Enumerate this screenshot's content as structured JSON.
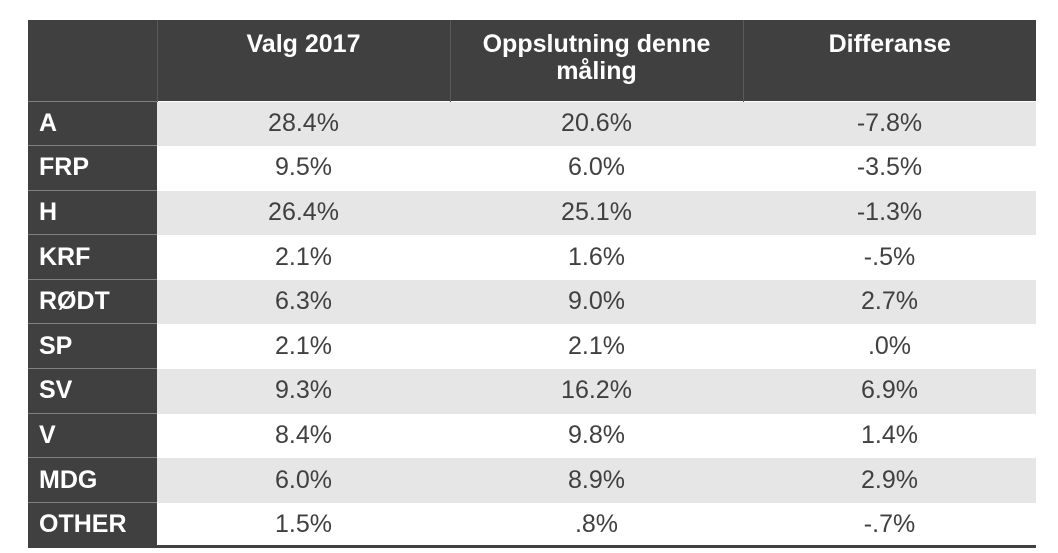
{
  "chart_data": {
    "type": "table",
    "columns": [
      "",
      "Valg 2017",
      "Oppslutning denne måling",
      "Differanse"
    ],
    "rows": [
      {
        "party": "A",
        "valg_2017": "28.4%",
        "oppslutning": "20.6%",
        "differanse": "-7.8%"
      },
      {
        "party": "FRP",
        "valg_2017": "9.5%",
        "oppslutning": "6.0%",
        "differanse": "-3.5%"
      },
      {
        "party": "H",
        "valg_2017": "26.4%",
        "oppslutning": "25.1%",
        "differanse": "-1.3%"
      },
      {
        "party": "KRF",
        "valg_2017": "2.1%",
        "oppslutning": "1.6%",
        "differanse": "-.5%"
      },
      {
        "party": "RØDT",
        "valg_2017": "6.3%",
        "oppslutning": "9.0%",
        "differanse": "2.7%"
      },
      {
        "party": "SP",
        "valg_2017": "2.1%",
        "oppslutning": "2.1%",
        "differanse": ".0%"
      },
      {
        "party": "SV",
        "valg_2017": "9.3%",
        "oppslutning": "16.2%",
        "differanse": "6.9%"
      },
      {
        "party": "V",
        "valg_2017": "8.4%",
        "oppslutning": "9.8%",
        "differanse": "1.4%"
      },
      {
        "party": "MDG",
        "valg_2017": "6.0%",
        "oppslutning": "8.9%",
        "differanse": "2.9%"
      },
      {
        "party": "OTHER",
        "valg_2017": "1.5%",
        "oppslutning": ".8%",
        "differanse": "-.7%"
      }
    ]
  },
  "colors": {
    "header_bg": "#404040",
    "header_text": "#ffffff",
    "row_stripe": "#e6e6e6",
    "cell_text": "#404040"
  }
}
